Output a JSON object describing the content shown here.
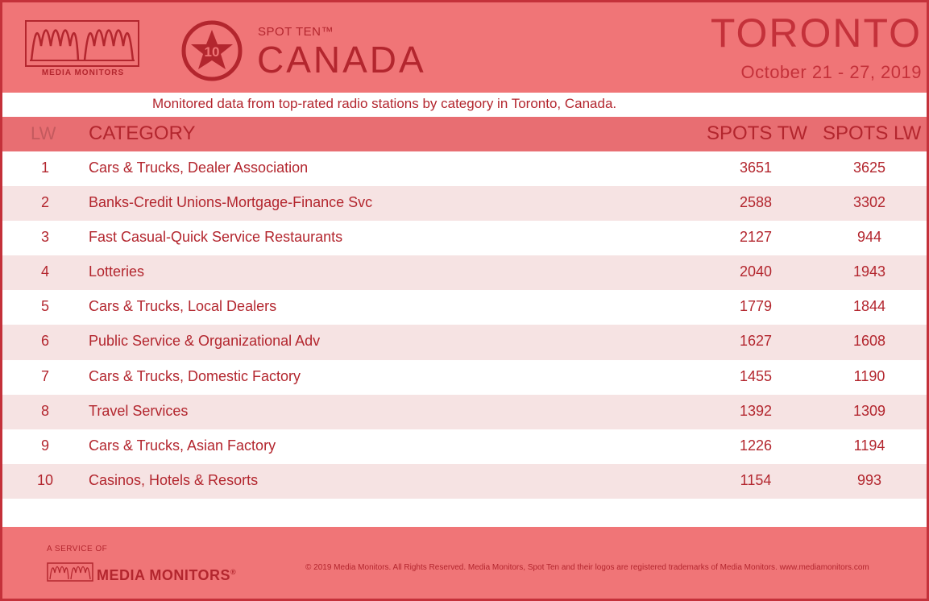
{
  "header": {
    "logo_text": "MEDIA MONITORS",
    "badge_number": "10",
    "spot_label": "SPOT TEN™",
    "country": "CANADA",
    "city": "TORONTO",
    "dates": "October 21 - 27, 2019"
  },
  "subtitle": "Monitored data from top-rated radio stations by category in Toronto, Canada.",
  "table": {
    "columns": {
      "lw": "LW",
      "category": "CATEGORY",
      "spots_tw": "SPOTS TW",
      "spots_lw": "SPOTS LW"
    },
    "rows": [
      {
        "lw": "1",
        "category": "Cars & Trucks, Dealer Association",
        "spots_tw": "3651",
        "spots_lw": "3625"
      },
      {
        "lw": "2",
        "category": "Banks-Credit Unions-Mortgage-Finance Svc",
        "spots_tw": "2588",
        "spots_lw": "3302"
      },
      {
        "lw": "3",
        "category": "Fast Casual-Quick Service Restaurants",
        "spots_tw": "2127",
        "spots_lw": "944"
      },
      {
        "lw": "4",
        "category": "Lotteries",
        "spots_tw": "2040",
        "spots_lw": "1943"
      },
      {
        "lw": "5",
        "category": "Cars & Trucks, Local Dealers",
        "spots_tw": "1779",
        "spots_lw": "1844"
      },
      {
        "lw": "6",
        "category": "Public Service & Organizational Adv",
        "spots_tw": "1627",
        "spots_lw": "1608"
      },
      {
        "lw": "7",
        "category": "Cars & Trucks, Domestic Factory",
        "spots_tw": "1455",
        "spots_lw": "1190"
      },
      {
        "lw": "8",
        "category": "Travel Services",
        "spots_tw": "1392",
        "spots_lw": "1309"
      },
      {
        "lw": "9",
        "category": "Cars & Trucks, Asian Factory",
        "spots_tw": "1226",
        "spots_lw": "1194"
      },
      {
        "lw": "10",
        "category": "Casinos, Hotels & Resorts",
        "spots_tw": "1154",
        "spots_lw": "993"
      }
    ]
  },
  "footer": {
    "service_of": "A SERVICE OF",
    "logo_text": "MEDIA MONITORS",
    "logo_reg": "®",
    "copyright": "© 2019 Media Monitors. All Rights Reserved. Media Monitors, Spot Ten and their logos are registered trademarks of Media Monitors. www.mediamonitors.com"
  },
  "colors": {
    "header_bg": "#f07577",
    "brand_red": "#b3262e",
    "row_alt": "#f6e3e3",
    "table_head_bg": "#e86e72"
  }
}
